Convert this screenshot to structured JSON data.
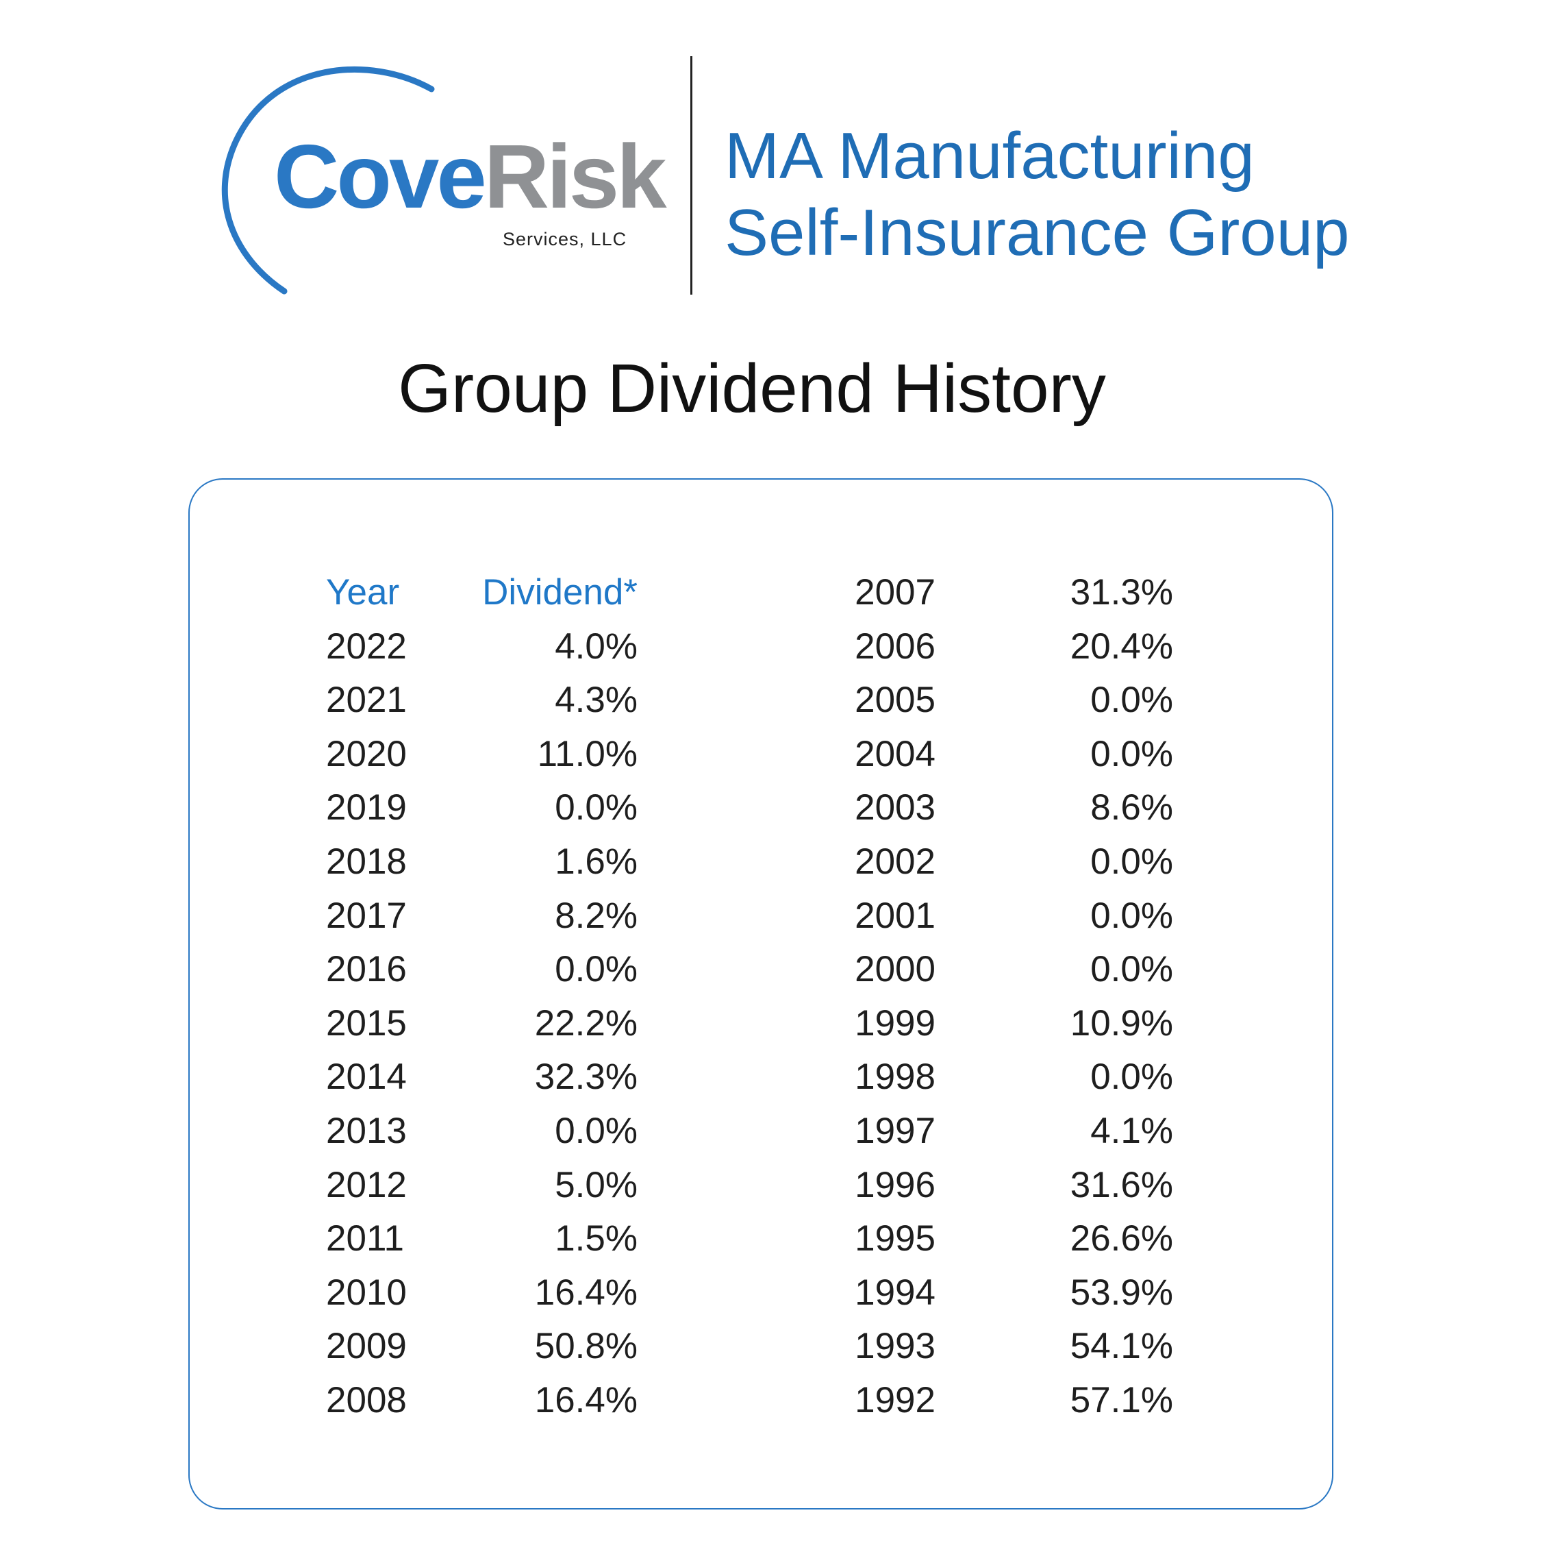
{
  "logo": {
    "brand_part1": "Cove",
    "brand_part2": "Risk",
    "subtitle": "Services, LLC",
    "colors": {
      "blue": "#2a78c4",
      "gray": "#8f9194"
    }
  },
  "header": {
    "group_line1": "MA Manufacturing",
    "group_line2": "Self-Insurance Group"
  },
  "title": "Group Dividend History",
  "table": {
    "headers": {
      "year": "Year",
      "dividend": "Dividend*"
    },
    "left": [
      {
        "year": "2022",
        "dividend": "4.0%"
      },
      {
        "year": "2021",
        "dividend": "4.3%"
      },
      {
        "year": "2020",
        "dividend": "11.0%"
      },
      {
        "year": "2019",
        "dividend": "0.0%"
      },
      {
        "year": "2018",
        "dividend": "1.6%"
      },
      {
        "year": "2017",
        "dividend": "8.2%"
      },
      {
        "year": "2016",
        "dividend": "0.0%"
      },
      {
        "year": "2015",
        "dividend": "22.2%"
      },
      {
        "year": "2014",
        "dividend": "32.3%"
      },
      {
        "year": "2013",
        "dividend": "0.0%"
      },
      {
        "year": "2012",
        "dividend": "5.0%"
      },
      {
        "year": "2011",
        "dividend": "1.5%"
      },
      {
        "year": "2010",
        "dividend": "16.4%"
      },
      {
        "year": "2009",
        "dividend": "50.8%"
      },
      {
        "year": "2008",
        "dividend": "16.4%"
      }
    ],
    "right": [
      {
        "year": "2007",
        "dividend": "31.3%"
      },
      {
        "year": "2006",
        "dividend": "20.4%"
      },
      {
        "year": "2005",
        "dividend": "0.0%"
      },
      {
        "year": "2004",
        "dividend": "0.0%"
      },
      {
        "year": "2003",
        "dividend": "8.6%"
      },
      {
        "year": "2002",
        "dividend": "0.0%"
      },
      {
        "year": "2001",
        "dividend": "0.0%"
      },
      {
        "year": "2000",
        "dividend": "0.0%"
      },
      {
        "year": "1999",
        "dividend": "10.9%"
      },
      {
        "year": "1998",
        "dividend": "0.0%"
      },
      {
        "year": "1997",
        "dividend": "4.1%"
      },
      {
        "year": "1996",
        "dividend": "31.6%"
      },
      {
        "year": "1995",
        "dividend": "26.6%"
      },
      {
        "year": "1994",
        "dividend": "53.9%"
      },
      {
        "year": "1993",
        "dividend": "54.1%"
      },
      {
        "year": "1992",
        "dividend": "57.1%"
      }
    ]
  }
}
